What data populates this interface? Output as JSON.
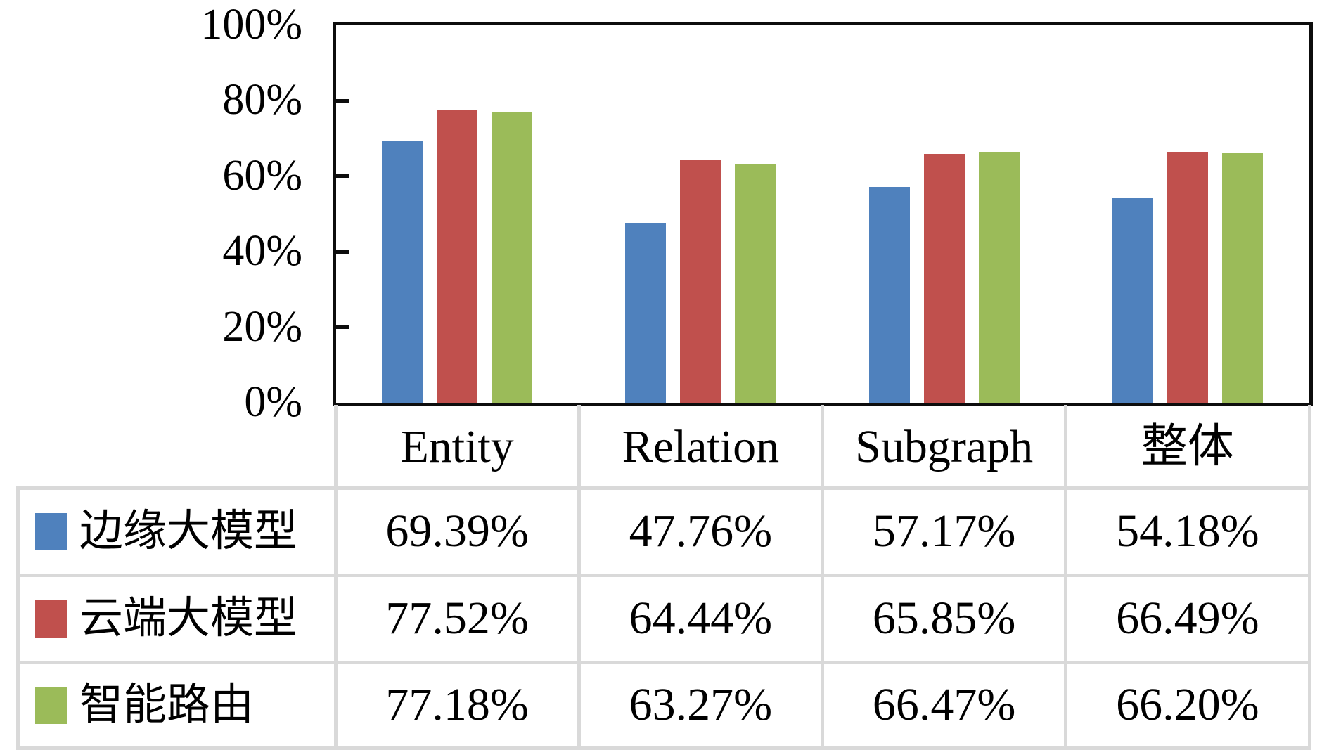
{
  "chart_data": {
    "type": "bar",
    "title": "",
    "categories": [
      "Entity",
      "Relation",
      "Subgraph",
      "整体"
    ],
    "series": [
      {
        "name": "边缘大模型",
        "color": "#4F81BD",
        "values": [
          69.39,
          47.76,
          57.17,
          54.18
        ],
        "labels": [
          "69.39%",
          "47.76%",
          "57.17%",
          "54.18%"
        ]
      },
      {
        "name": "云端大模型",
        "color": "#C0504D",
        "values": [
          77.52,
          64.44,
          65.85,
          66.49
        ],
        "labels": [
          "77.52%",
          "64.44%",
          "65.85%",
          "66.49%"
        ]
      },
      {
        "name": "智能路由",
        "color": "#9BBB59",
        "values": [
          77.18,
          63.27,
          66.47,
          66.2
        ],
        "labels": [
          "77.18%",
          "63.27%",
          "66.47%",
          "66.20%"
        ]
      }
    ],
    "y_axis": {
      "min": 0,
      "max": 100,
      "tick_labels": [
        "0%",
        "20%",
        "40%",
        "60%",
        "80%",
        "100%"
      ]
    },
    "grid": false,
    "legend_position": "table-rows-left",
    "colors": {
      "axis": "#0d0d0d",
      "table_grid": "#D9D9D9",
      "background": "#FFFFFF"
    }
  }
}
